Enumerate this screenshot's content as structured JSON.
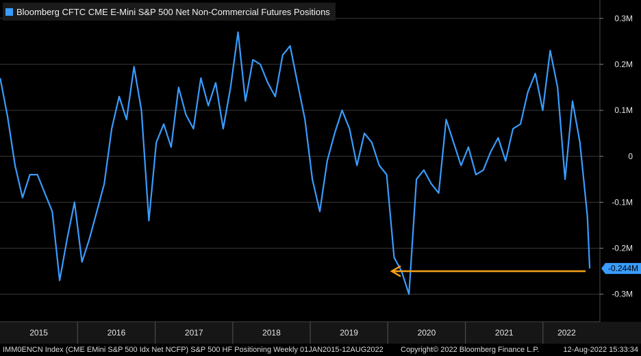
{
  "chart_data": {
    "type": "line",
    "title": "Bloomberg CFTC CME E-Mini S&P 500 Net Non-Commercial Futures Positions",
    "series_color": "#3a9cff",
    "arrow_color": "#f7a21b",
    "y_ticks": [
      {
        "value": 300000,
        "label": "0.3M"
      },
      {
        "value": 200000,
        "label": "0.2M"
      },
      {
        "value": 100000,
        "label": "0.1M"
      },
      {
        "value": 0,
        "label": "0"
      },
      {
        "value": -100000,
        "label": "-0.1M"
      },
      {
        "value": -200000,
        "label": "-0.2M"
      },
      {
        "value": -300000,
        "label": "-0.3M"
      }
    ],
    "ylim": [
      -360000,
      340000
    ],
    "x_labels": [
      "2015",
      "2016",
      "2017",
      "2018",
      "2019",
      "2020",
      "2021",
      "2022"
    ],
    "xlim": [
      "2015-01-01",
      "2022-08-12"
    ],
    "last_value_label": "-0.244M",
    "grid": true,
    "series": [
      {
        "x": [
          "2015-01-02",
          "2015-02-06",
          "2015-03-13",
          "2015-04-17",
          "2015-05-22",
          "2015-06-26",
          "2015-07-31",
          "2015-09-04",
          "2015-10-09",
          "2015-11-13",
          "2015-12-18",
          "2016-01-22",
          "2016-02-26",
          "2016-04-01",
          "2016-05-06",
          "2016-06-10",
          "2016-07-15",
          "2016-08-19",
          "2016-09-23",
          "2016-10-28",
          "2016-12-02",
          "2017-01-06",
          "2017-02-10",
          "2017-03-17",
          "2017-04-21",
          "2017-05-26",
          "2017-06-30",
          "2017-08-04",
          "2017-09-08",
          "2017-10-13",
          "2017-11-17",
          "2017-12-22",
          "2018-01-26",
          "2018-03-02",
          "2018-04-06",
          "2018-05-11",
          "2018-06-15",
          "2018-07-20",
          "2018-08-24",
          "2018-09-28",
          "2018-11-02",
          "2018-12-07",
          "2019-01-11",
          "2019-02-15",
          "2019-03-22",
          "2019-04-26",
          "2019-05-31",
          "2019-07-05",
          "2019-08-09",
          "2019-09-13",
          "2019-10-18",
          "2019-11-22",
          "2019-12-27",
          "2020-01-31",
          "2020-03-06",
          "2020-04-10",
          "2020-05-15",
          "2020-06-19",
          "2020-07-24",
          "2020-08-28",
          "2020-10-02",
          "2020-11-06",
          "2020-12-11",
          "2021-01-15",
          "2021-02-19",
          "2021-03-26",
          "2021-04-30",
          "2021-06-04",
          "2021-07-09",
          "2021-08-13",
          "2021-09-17",
          "2021-10-22",
          "2021-11-26",
          "2021-12-31",
          "2022-02-04",
          "2022-03-11",
          "2022-04-15",
          "2022-05-20",
          "2022-06-24",
          "2022-07-29",
          "2022-08-09"
        ],
        "values": [
          170000,
          85000,
          -20000,
          -90000,
          -40000,
          -40000,
          -80000,
          -120000,
          -270000,
          -180000,
          -100000,
          -230000,
          -180000,
          -120000,
          -60000,
          60000,
          130000,
          80000,
          195000,
          100000,
          -140000,
          30000,
          70000,
          20000,
          150000,
          90000,
          60000,
          170000,
          110000,
          160000,
          60000,
          150000,
          270000,
          120000,
          210000,
          200000,
          160000,
          130000,
          220000,
          240000,
          160000,
          80000,
          -50000,
          -120000,
          -10000,
          50000,
          100000,
          60000,
          -20000,
          50000,
          30000,
          -20000,
          -40000,
          -220000,
          -250000,
          -300000,
          -50000,
          -30000,
          -60000,
          -80000,
          80000,
          30000,
          -20000,
          20000,
          -40000,
          -30000,
          10000,
          40000,
          -10000,
          60000,
          70000,
          140000,
          180000,
          100000,
          230000,
          150000,
          -50000,
          120000,
          30000,
          -130000,
          -244000
        ]
      }
    ]
  },
  "footer": {
    "left": "IMM0ENCN Index (CME EMini S&P 500 Idx Net NCFP) S&P 500 HF Positioning  Weekly 01JAN2015-12AUG2022",
    "middle": "Copyright© 2022 Bloomberg Finance L.P.",
    "right": "12-Aug-2022 15:33:34"
  }
}
